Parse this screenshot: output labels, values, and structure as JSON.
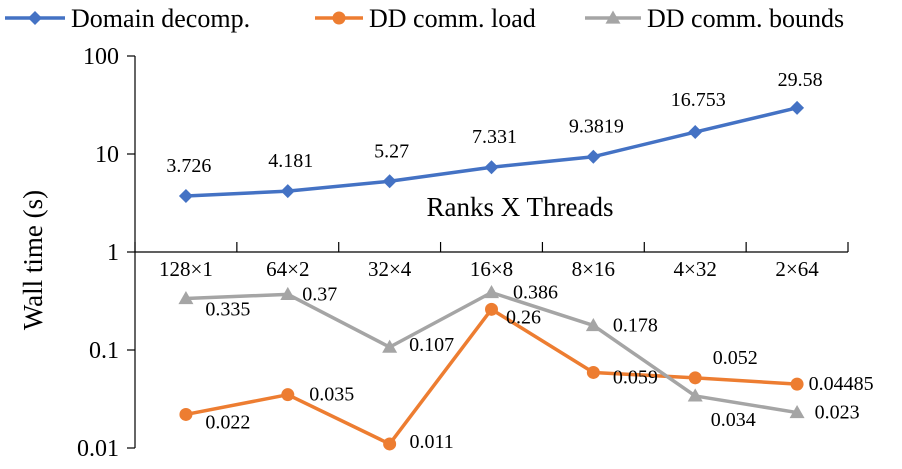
{
  "chart_data": {
    "type": "line",
    "y_scale": "log",
    "ylim": [
      0.01,
      100
    ],
    "y_ticks": [
      "100",
      "10",
      "1",
      "0.1",
      "0.01"
    ],
    "ylabel": "Wall time (s)",
    "xlabel": "Ranks X Threads",
    "categories": [
      "128×1",
      "64×2",
      "32×4",
      "16×8",
      "8×16",
      "4×32",
      "2×64"
    ],
    "legend_position": "top",
    "grid": false,
    "series": [
      {
        "name": "Domain decomp.",
        "color": "#4472C4",
        "marker": "diamond",
        "values": [
          3.726,
          4.181,
          5.27,
          7.331,
          9.3819,
          16.753,
          29.58
        ],
        "labels": [
          "3.726",
          "4.181",
          "5.27",
          "7.331",
          "9.3819",
          "16.753",
          "29.58"
        ]
      },
      {
        "name": "DD comm. load",
        "color": "#ED7D31",
        "marker": "circle",
        "values": [
          0.022,
          0.035,
          0.011,
          0.26,
          0.059,
          0.052,
          0.04485
        ],
        "labels": [
          "0.022",
          "0.035",
          "0.011",
          "0.26",
          "0.059",
          "0.052",
          "0.04485"
        ]
      },
      {
        "name": "DD comm. bounds",
        "color": "#A5A5A5",
        "marker": "triangle",
        "values": [
          0.335,
          0.37,
          0.107,
          0.386,
          0.178,
          0.034,
          0.023
        ],
        "labels": [
          "0.335",
          "0.37",
          "0.107",
          "0.386",
          "0.178",
          "0.034",
          "0.023"
        ]
      }
    ]
  }
}
